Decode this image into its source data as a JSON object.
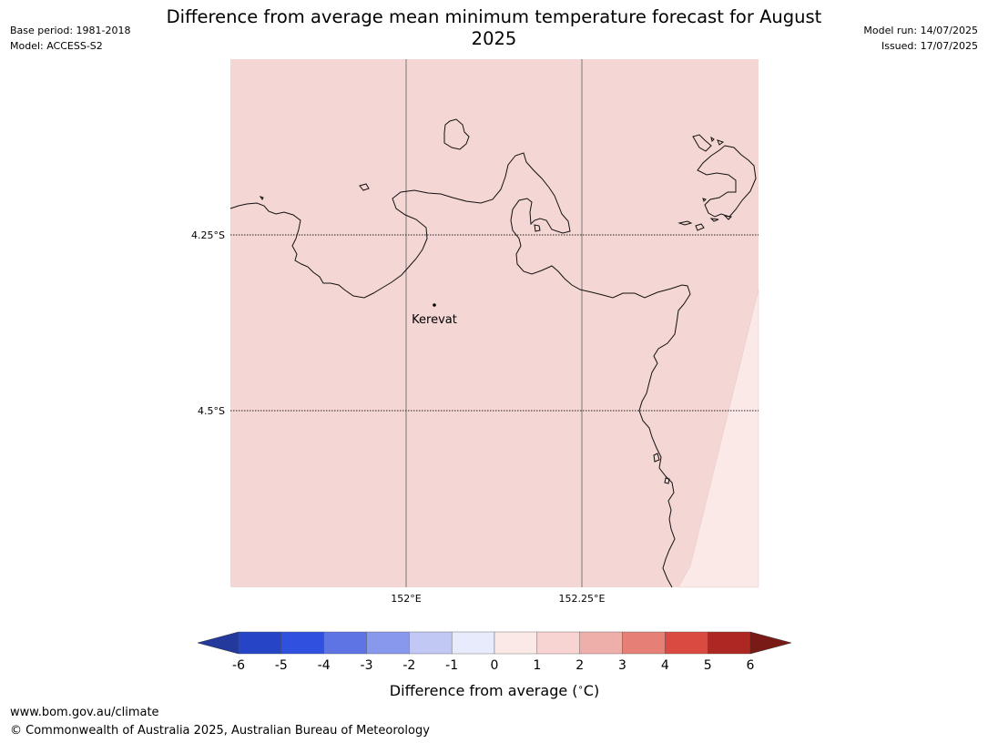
{
  "title": "Difference from average mean minimum temperature forecast for August 2025",
  "header_left": {
    "base_period": "Base period: 1981-2018",
    "model": "Model: ACCESS-S2"
  },
  "header_right": {
    "model_run": "Model run: 14/07/2025",
    "issued": "Issued: 17/07/2025"
  },
  "map": {
    "lat_labels": [
      "4.25°S",
      "4.5°S"
    ],
    "lon_labels": [
      "152°E",
      "152.25°E"
    ],
    "place": "Kerevat",
    "fill_colors": {
      "main": "#f4d6d4",
      "east_strip": "#fae9e7"
    }
  },
  "colorbar": {
    "ticks": [
      "-6",
      "-5",
      "-4",
      "-3",
      "-2",
      "-1",
      "0",
      "1",
      "2",
      "3",
      "4",
      "5",
      "6"
    ],
    "colors": [
      "#233a9c",
      "#2645c6",
      "#3050e0",
      "#5e74e5",
      "#8898ec",
      "#c1c8f4",
      "#e8ebfb",
      "#fbe9e7",
      "#f7d4d2",
      "#eeaea9",
      "#e68077",
      "#db4a40",
      "#ad2822",
      "#7a1a16"
    ],
    "label": "Difference from average (",
    "unit": "C)"
  },
  "footer": {
    "url": "www.bom.gov.au/climate",
    "copyright": "© Commonwealth of Australia 2025, Australian Bureau of Meteorology"
  }
}
